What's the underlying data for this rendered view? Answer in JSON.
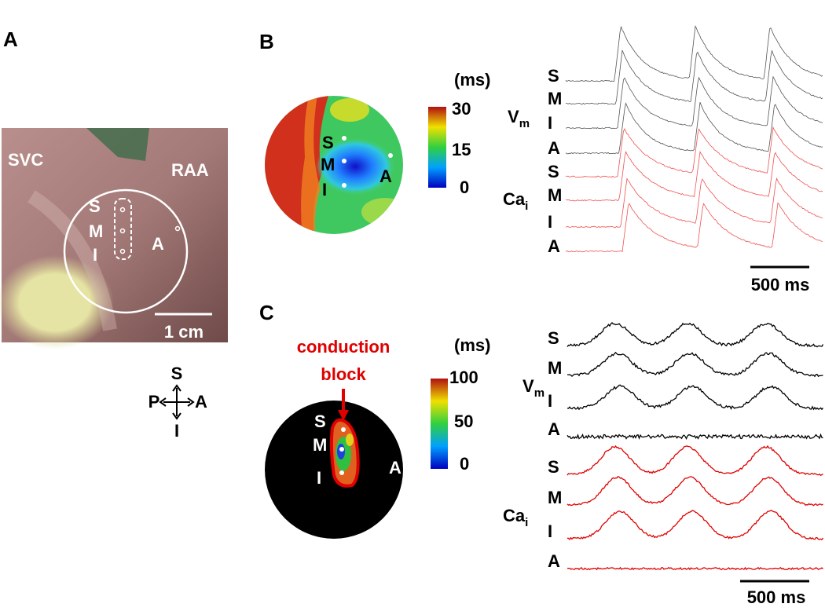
{
  "panel_a": {
    "label": "A",
    "landmarks": [
      "SVC",
      "RAA"
    ],
    "sites": [
      "S",
      "M",
      "I",
      "A"
    ],
    "scale_bar": "1 cm",
    "compass": {
      "up": "S",
      "left": "P",
      "right": "A",
      "down": "I"
    }
  },
  "panel_b": {
    "label": "B",
    "colorbar": {
      "unit": "(ms)",
      "ticks": [
        30,
        15,
        0
      ]
    },
    "sites": [
      "S",
      "M",
      "I",
      "A"
    ],
    "traces": {
      "vm": {
        "main": "V",
        "sub": "m"
      },
      "cai": {
        "main": "Ca",
        "sub": "i"
      },
      "vm_sites": [
        "S",
        "M",
        "I",
        "A"
      ],
      "cai_sites": [
        "S",
        "M",
        "I",
        "A"
      ],
      "scale_bar": "500 ms"
    }
  },
  "panel_c": {
    "label": "C",
    "annotation": [
      "conduction",
      "block"
    ],
    "colorbar": {
      "unit": "(ms)",
      "ticks": [
        100,
        50,
        0
      ]
    },
    "sites": [
      "S",
      "M",
      "I",
      "A"
    ],
    "traces": {
      "vm": {
        "main": "V",
        "sub": "m"
      },
      "cai": {
        "main": "Ca",
        "sub": "i"
      },
      "vm_sites": [
        "S",
        "M",
        "I",
        "A"
      ],
      "cai_sites": [
        "S",
        "M",
        "I",
        "A"
      ],
      "scale_bar": "500 ms"
    }
  }
}
